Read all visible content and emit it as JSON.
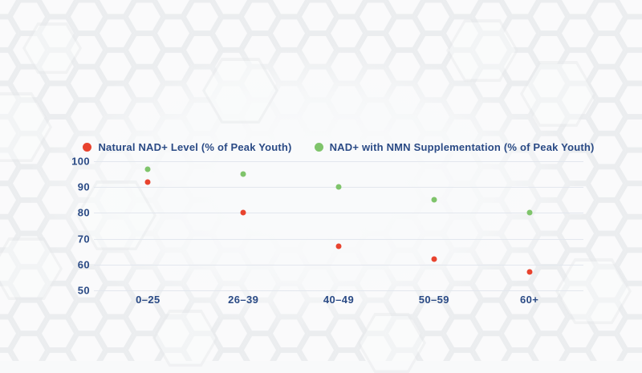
{
  "chart_data": {
    "type": "scatter",
    "title": "",
    "categories": [
      "0–25",
      "26–39",
      "40–49",
      "50–59",
      "60+"
    ],
    "series": [
      {
        "name": "Natural NAD+ Level (% of Peak Youth)",
        "color": "#e8432e",
        "values": [
          92,
          80,
          67,
          62,
          57
        ]
      },
      {
        "name": "NAD+ with NMN Supplementation (% of Peak Youth)",
        "color": "#7fc46b",
        "values": [
          97,
          95,
          90,
          85,
          80
        ]
      }
    ],
    "xlabel": "",
    "ylabel": "",
    "ylim": [
      50,
      100
    ],
    "yticks": [
      100,
      90,
      80,
      70,
      60,
      50
    ],
    "grid": true,
    "legend_position": "top"
  },
  "background": {
    "pattern": "honeycomb-hexagons",
    "page_bg": "#f8f9fa",
    "hex_line": "#e7e9ec"
  },
  "colors": {
    "axis_text": "#2a4a85",
    "gridline": "#e3e7ee"
  }
}
